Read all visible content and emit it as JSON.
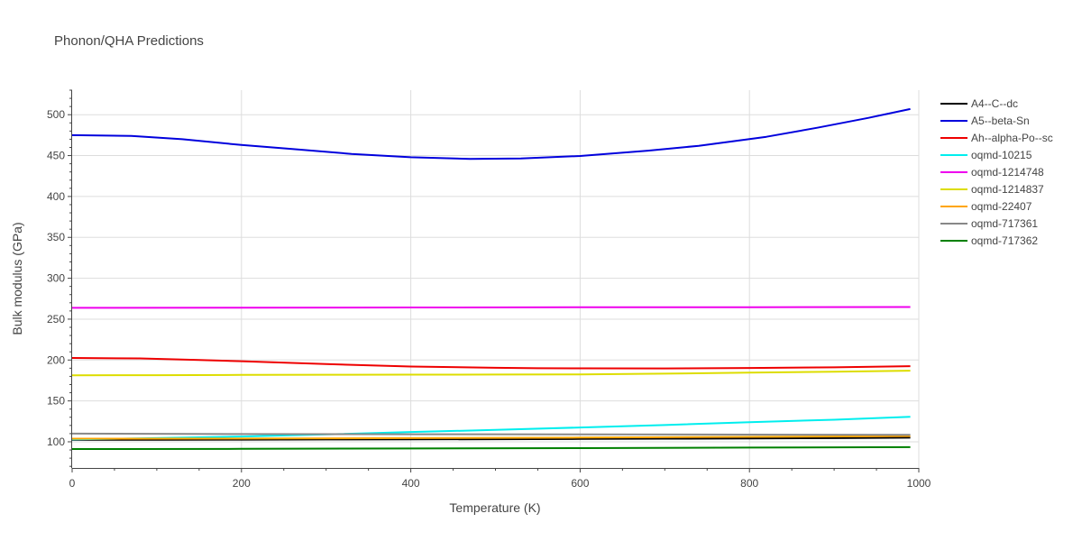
{
  "chart_data": {
    "type": "line",
    "title": "Phonon/QHA Predictions",
    "xlabel": "Temperature (K)",
    "ylabel": "Bulk modulus (GPa)",
    "xlim": [
      0,
      1000
    ],
    "ylim": [
      68,
      530
    ],
    "x_ticks": [
      0,
      200,
      400,
      600,
      800,
      1000
    ],
    "y_ticks": [
      100,
      150,
      200,
      250,
      300,
      350,
      400,
      450,
      500
    ],
    "grid": true,
    "legend_position": "right",
    "series": [
      {
        "name": "A4--C--dc",
        "color": "#000000",
        "x": [
          0,
          100,
          200,
          300,
          400,
          500,
          600,
          700,
          800,
          900,
          990
        ],
        "y": [
          102.5,
          102.5,
          102.6,
          102.8,
          103.0,
          103.2,
          103.5,
          103.8,
          104.1,
          104.5,
          105.0
        ]
      },
      {
        "name": "A5--beta-Sn",
        "color": "#0000dd",
        "x": [
          0,
          70,
          130,
          200,
          260,
          330,
          400,
          470,
          530,
          600,
          680,
          740,
          820,
          880,
          940,
          990
        ],
        "y": [
          475,
          474,
          470,
          463,
          458,
          452,
          448,
          446,
          446.5,
          449.5,
          456,
          462,
          473,
          484,
          496,
          507
        ]
      },
      {
        "name": "Ah--alpha-Po--sc",
        "color": "#ee0000",
        "x": [
          0,
          80,
          150,
          200,
          300,
          400,
          500,
          550,
          600,
          700,
          800,
          900,
          990
        ],
        "y": [
          202.5,
          202,
          200,
          198.5,
          195,
          192,
          190.5,
          190,
          189.8,
          189.7,
          190.3,
          191,
          192.5
        ]
      },
      {
        "name": "oqmd-10215",
        "color": "#00eeee",
        "x": [
          0,
          100,
          200,
          300,
          400,
          500,
          600,
          700,
          800,
          900,
          990
        ],
        "y": [
          103,
          104.5,
          106.5,
          109,
          112,
          114.5,
          117.5,
          120.5,
          124,
          127,
          130.5
        ]
      },
      {
        "name": "oqmd-1214748",
        "color": "#ee00ee",
        "x": [
          0,
          200,
          400,
          600,
          800,
          990
        ],
        "y": [
          263.8,
          264.1,
          264.3,
          264.5,
          264.6,
          264.8
        ]
      },
      {
        "name": "oqmd-1214837",
        "color": "#dddd00",
        "x": [
          0,
          100,
          200,
          300,
          400,
          500,
          600,
          700,
          800,
          900,
          990
        ],
        "y": [
          181.3,
          181.5,
          181.8,
          182,
          182.1,
          182.2,
          182.4,
          183.3,
          184.5,
          185.8,
          187
        ]
      },
      {
        "name": "oqmd-22407",
        "color": "#ffa500",
        "x": [
          0,
          200,
          400,
          600,
          800,
          990
        ],
        "y": [
          103.8,
          104,
          104.5,
          105.2,
          106,
          107
        ]
      },
      {
        "name": "oqmd-717361",
        "color": "#888888",
        "x": [
          0,
          200,
          400,
          600,
          800,
          990
        ],
        "y": [
          110,
          109.5,
          109.2,
          109,
          108.8,
          108.6
        ]
      },
      {
        "name": "oqmd-717362",
        "color": "#008000",
        "x": [
          0,
          200,
          400,
          600,
          800,
          990
        ],
        "y": [
          91.2,
          91.4,
          91.8,
          92.3,
          92.9,
          93.5
        ]
      }
    ]
  }
}
